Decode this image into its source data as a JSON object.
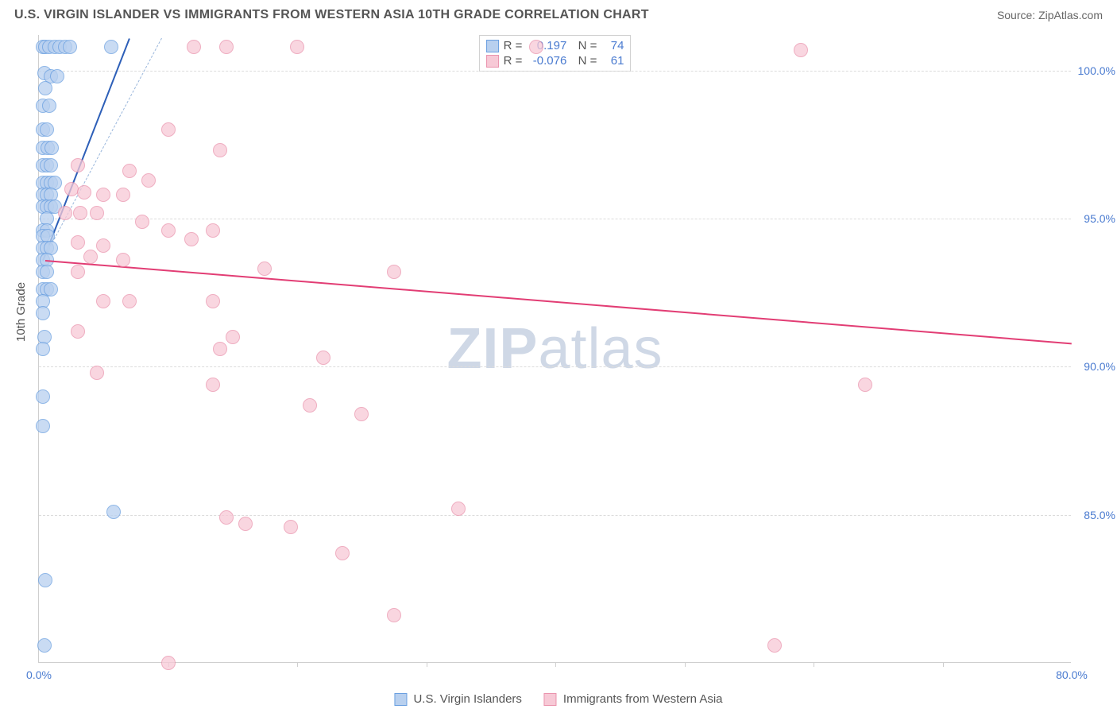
{
  "header": {
    "title": "U.S. VIRGIN ISLANDER VS IMMIGRANTS FROM WESTERN ASIA 10TH GRADE CORRELATION CHART",
    "source": "Source: ZipAtlas.com"
  },
  "chart": {
    "type": "scatter",
    "ylabel": "10th Grade",
    "xlim": [
      0,
      80
    ],
    "ylim": [
      80,
      101.2
    ],
    "ytick_values": [
      85,
      90,
      95,
      100
    ],
    "ytick_labels": [
      "85.0%",
      "90.0%",
      "95.0%",
      "100.0%"
    ],
    "xtick_values": [
      0,
      80
    ],
    "xtick_labels": [
      "0.0%",
      "80.0%"
    ],
    "xminor_ticks": [
      10,
      20,
      30,
      40,
      50,
      60,
      70
    ],
    "background_color": "#ffffff",
    "grid_color": "#dcdcdc",
    "series": [
      {
        "name": "U.S. Virgin Islanders",
        "color_fill": "#b8d0ef",
        "color_stroke": "#6a9fe0",
        "marker_radius": 9,
        "R": "0.197",
        "N": "74",
        "trend": {
          "x1": 0.3,
          "y1": 93.6,
          "x2": 7,
          "y2": 101.1,
          "color": "#2d5fb8",
          "dash": false
        },
        "trend_ext": {
          "x1": 0.3,
          "y1": 93.6,
          "x2": 9.5,
          "y2": 101.1,
          "color": "#9ab7dc",
          "dash": true
        },
        "points": [
          [
            0.3,
            100.8
          ],
          [
            0.5,
            100.8
          ],
          [
            0.8,
            100.8
          ],
          [
            1.2,
            100.8
          ],
          [
            1.6,
            100.8
          ],
          [
            2.0,
            100.8
          ],
          [
            2.4,
            100.8
          ],
          [
            5.6,
            100.8
          ],
          [
            0.4,
            99.9
          ],
          [
            0.9,
            99.8
          ],
          [
            1.4,
            99.8
          ],
          [
            0.5,
            99.4
          ],
          [
            0.3,
            98.8
          ],
          [
            0.8,
            98.8
          ],
          [
            0.3,
            98.0
          ],
          [
            0.6,
            98.0
          ],
          [
            0.3,
            97.4
          ],
          [
            0.7,
            97.4
          ],
          [
            1.0,
            97.4
          ],
          [
            0.3,
            96.8
          ],
          [
            0.6,
            96.8
          ],
          [
            0.9,
            96.8
          ],
          [
            0.3,
            96.2
          ],
          [
            0.6,
            96.2
          ],
          [
            0.9,
            96.2
          ],
          [
            1.2,
            96.2
          ],
          [
            0.3,
            95.8
          ],
          [
            0.6,
            95.8
          ],
          [
            0.9,
            95.8
          ],
          [
            0.3,
            95.4
          ],
          [
            0.6,
            95.4
          ],
          [
            0.9,
            95.4
          ],
          [
            1.2,
            95.4
          ],
          [
            0.6,
            95.0
          ],
          [
            0.3,
            94.6
          ],
          [
            0.6,
            94.6
          ],
          [
            0.3,
            94.4
          ],
          [
            0.7,
            94.4
          ],
          [
            0.3,
            94.0
          ],
          [
            0.6,
            94.0
          ],
          [
            0.9,
            94.0
          ],
          [
            0.3,
            93.6
          ],
          [
            0.6,
            93.6
          ],
          [
            0.3,
            93.2
          ],
          [
            0.6,
            93.2
          ],
          [
            0.3,
            92.6
          ],
          [
            0.6,
            92.6
          ],
          [
            0.9,
            92.6
          ],
          [
            0.3,
            92.2
          ],
          [
            0.3,
            91.8
          ],
          [
            0.4,
            91.0
          ],
          [
            0.3,
            90.6
          ],
          [
            0.3,
            89.0
          ],
          [
            0.3,
            88.0
          ],
          [
            5.8,
            85.1
          ],
          [
            0.5,
            82.8
          ],
          [
            0.4,
            80.6
          ]
        ]
      },
      {
        "name": "Immigrants from Western Asia",
        "color_fill": "#f7c9d6",
        "color_stroke": "#ea93ad",
        "marker_radius": 9,
        "R": "-0.076",
        "N": "61",
        "trend": {
          "x1": 0.5,
          "y1": 93.6,
          "x2": 80,
          "y2": 90.8,
          "color": "#e23d74",
          "dash": false
        },
        "points": [
          [
            12,
            100.8
          ],
          [
            14.5,
            100.8
          ],
          [
            20,
            100.8
          ],
          [
            38.5,
            100.8
          ],
          [
            59,
            100.7
          ],
          [
            10,
            98.0
          ],
          [
            14,
            97.3
          ],
          [
            3,
            96.8
          ],
          [
            7,
            96.6
          ],
          [
            8.5,
            96.3
          ],
          [
            2.5,
            96.0
          ],
          [
            3.5,
            95.9
          ],
          [
            5,
            95.8
          ],
          [
            6.5,
            95.8
          ],
          [
            2,
            95.2
          ],
          [
            3.2,
            95.2
          ],
          [
            4.5,
            95.2
          ],
          [
            8,
            94.9
          ],
          [
            10,
            94.6
          ],
          [
            13.5,
            94.6
          ],
          [
            3,
            94.2
          ],
          [
            5,
            94.1
          ],
          [
            11.8,
            94.3
          ],
          [
            4,
            93.7
          ],
          [
            6.5,
            93.6
          ],
          [
            17.5,
            93.3
          ],
          [
            3,
            93.2
          ],
          [
            27.5,
            93.2
          ],
          [
            5,
            92.2
          ],
          [
            7,
            92.2
          ],
          [
            13.5,
            92.2
          ],
          [
            3,
            91.2
          ],
          [
            15,
            91.0
          ],
          [
            14,
            90.6
          ],
          [
            22,
            90.3
          ],
          [
            4.5,
            89.8
          ],
          [
            13.5,
            89.4
          ],
          [
            21,
            88.7
          ],
          [
            25,
            88.4
          ],
          [
            32.5,
            85.2
          ],
          [
            19.5,
            84.6
          ],
          [
            14.5,
            84.9
          ],
          [
            16,
            84.7
          ],
          [
            23.5,
            83.7
          ],
          [
            27.5,
            81.6
          ],
          [
            10,
            80.0
          ],
          [
            57,
            80.6
          ],
          [
            64,
            89.4
          ]
        ]
      }
    ],
    "watermark": {
      "zip": "ZIP",
      "atlas": "atlas"
    },
    "bottom_legend": [
      {
        "label": "U.S. Virgin Islanders",
        "fill": "#b8d0ef",
        "stroke": "#6a9fe0"
      },
      {
        "label": "Immigrants from Western Asia",
        "fill": "#f7c9d6",
        "stroke": "#ea93ad"
      }
    ]
  }
}
